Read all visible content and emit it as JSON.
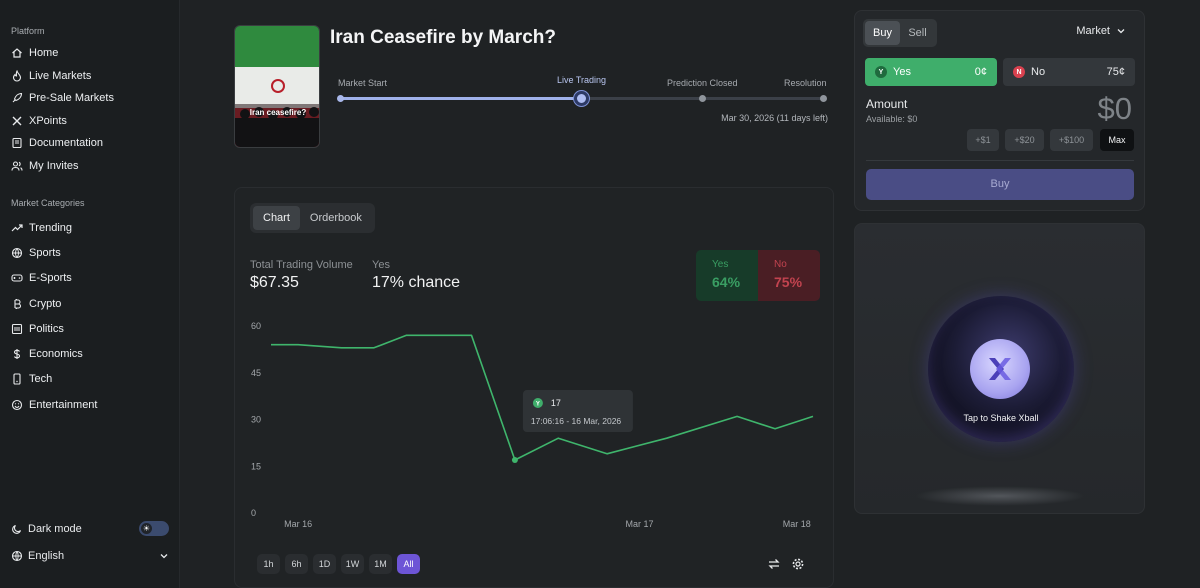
{
  "sidebar": {
    "platform_label": "Platform",
    "nav": [
      {
        "label": "Home",
        "icon": "home-icon"
      },
      {
        "label": "Live Markets",
        "icon": "flame-icon"
      },
      {
        "label": "Pre-Sale Markets",
        "icon": "rocket-icon"
      },
      {
        "label": "XPoints",
        "icon": "x-icon"
      },
      {
        "label": "Documentation",
        "icon": "book-icon"
      },
      {
        "label": "My Invites",
        "icon": "users-icon"
      }
    ],
    "categories_label": "Market Categories",
    "categories": [
      {
        "label": "Trending",
        "icon": "trending-icon"
      },
      {
        "label": "Sports",
        "icon": "ball-icon"
      },
      {
        "label": "E-Sports",
        "icon": "gamepad-icon"
      },
      {
        "label": "Crypto",
        "icon": "bitcoin-icon"
      },
      {
        "label": "Politics",
        "icon": "building-icon"
      },
      {
        "label": "Economics",
        "icon": "dollar-icon"
      },
      {
        "label": "Tech",
        "icon": "device-icon"
      },
      {
        "label": "Entertainment",
        "icon": "smile-icon"
      }
    ],
    "dark_mode_label": "Dark mode",
    "language": "English"
  },
  "market": {
    "title": "Iran Ceasefire by March?",
    "thumb_caption": "Iran ceasefire?",
    "stages": [
      "Market Start",
      "Live Trading",
      "Prediction Closed",
      "Resolution"
    ],
    "current_stage_index": 1,
    "deadline": "Mar 30, 2026 (11 days left)"
  },
  "chart_panel": {
    "tabs": [
      "Chart",
      "Orderbook"
    ],
    "volume_label": "Total Trading Volume",
    "volume_value": "$67.35",
    "yes_label": "Yes",
    "chance_value": "17% chance",
    "yes_box": {
      "label": "Yes",
      "pct": "64%"
    },
    "no_box": {
      "label": "No",
      "pct": "75%"
    },
    "tooltip": {
      "badge": "Y",
      "value": "17",
      "time": "17:06:16 - 16 Mar, 2026"
    },
    "ranges": [
      "1h",
      "6h",
      "1D",
      "1W",
      "1M",
      "All"
    ],
    "selected_range": "All"
  },
  "chart_data": {
    "type": "line",
    "title": "",
    "xlabel": "",
    "ylabel": "",
    "ylim": [
      0,
      60
    ],
    "yticks": [
      0,
      15,
      30,
      45,
      60
    ],
    "xtick_labels": [
      {
        "label": "Mar 16",
        "x": 0.05
      },
      {
        "label": "Mar 17",
        "x": 0.68
      },
      {
        "label": "Mar 18",
        "x": 0.97
      }
    ],
    "series": [
      {
        "name": "Yes",
        "color": "#3fb56c",
        "x": [
          0,
          0.05,
          0.13,
          0.19,
          0.25,
          0.37,
          0.45,
          0.53,
          0.62,
          0.73,
          0.86,
          0.93,
          1.0
        ],
        "values": [
          54,
          54,
          53,
          53,
          57,
          57,
          17,
          24,
          19,
          24,
          31,
          27,
          31
        ]
      }
    ],
    "highlight_index": 6
  },
  "trade": {
    "tabs": [
      "Buy",
      "Sell"
    ],
    "order_type": "Market",
    "yes": {
      "badge": "Y",
      "label": "Yes",
      "price": "0¢"
    },
    "no": {
      "badge": "N",
      "label": "No",
      "price": "75¢"
    },
    "amount_label": "Amount",
    "available": "Available: $0",
    "amount_value": "$0",
    "quick_amounts": [
      "+$1",
      "+$20",
      "+$100",
      "Max"
    ],
    "buy_label": "Buy"
  },
  "xball": {
    "label": "Tap to Shake Xball"
  },
  "colors": {
    "accent": "#6d55d6",
    "yes": "#3fae6b",
    "no": "#c2434f"
  }
}
